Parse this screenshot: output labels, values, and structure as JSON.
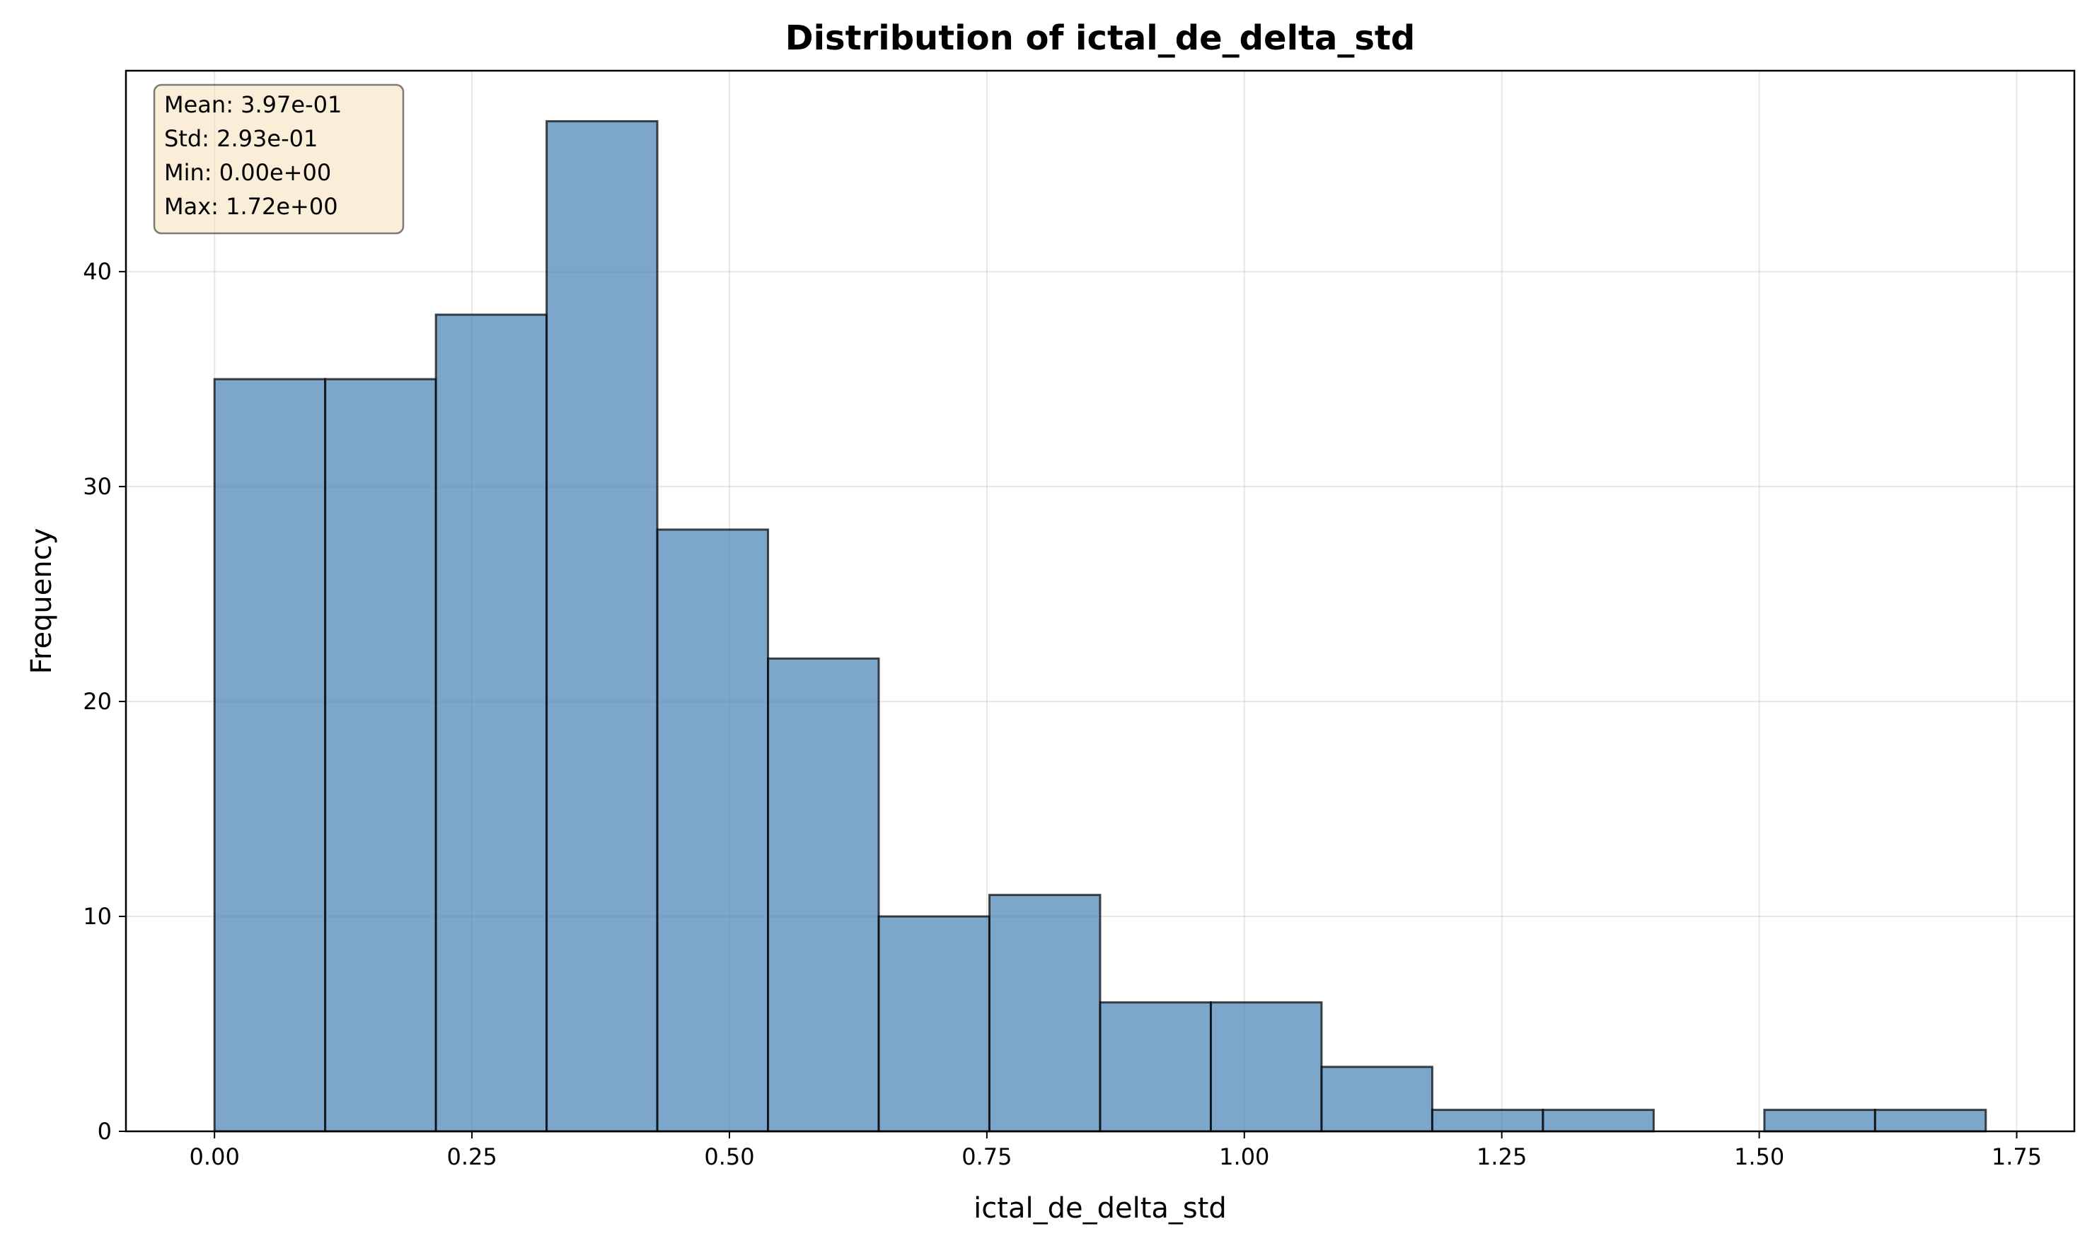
{
  "chart_data": {
    "type": "bar",
    "title": "Distribution of ictal_de_delta_std",
    "xlabel": "ictal_de_delta_std",
    "ylabel": "Frequency",
    "bin_edges": [
      0.0,
      0.1075,
      0.215,
      0.3225,
      0.43,
      0.5375,
      0.645,
      0.7525,
      0.86,
      0.9675,
      1.075,
      1.1825,
      1.29,
      1.3975,
      1.505,
      1.6125,
      1.72
    ],
    "values": [
      35,
      35,
      38,
      47,
      28,
      22,
      10,
      11,
      6,
      6,
      3,
      1,
      1,
      0,
      1,
      1
    ],
    "xlim": [
      -0.086,
      1.806
    ],
    "ylim": [
      0,
      49.35
    ],
    "xticks": [
      0.0,
      0.25,
      0.5,
      0.75,
      1.0,
      1.25,
      1.5,
      1.75
    ],
    "xtick_labels": [
      "0.00",
      "0.25",
      "0.50",
      "0.75",
      "1.00",
      "1.25",
      "1.50",
      "1.75"
    ],
    "yticks": [
      0,
      10,
      20,
      30,
      40
    ],
    "ytick_labels": [
      "0",
      "10",
      "20",
      "30",
      "40"
    ],
    "grid": true,
    "bar_color": "#4682b4",
    "bar_edge_color": "#000000",
    "stats_box_color": "#f5deb3",
    "stats_box_position": "top-left",
    "stats": {
      "mean": "Mean: 3.97e-01",
      "std": "Std: 2.93e-01",
      "min": "Min: 0.00e+00",
      "max": "Max: 1.72e+00"
    }
  }
}
